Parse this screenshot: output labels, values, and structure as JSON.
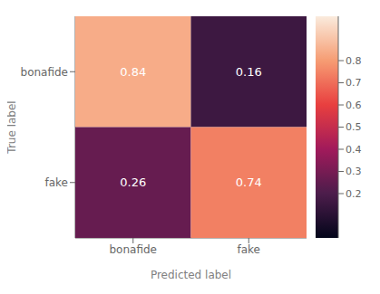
{
  "chart_data": {
    "type": "heatmap",
    "xlabel": "Predicted label",
    "ylabel": "True label",
    "x_categories": [
      "bonafide",
      "fake"
    ],
    "y_categories": [
      "bonafide",
      "fake"
    ],
    "matrix": [
      [
        0.84,
        0.16
      ],
      [
        0.26,
        0.74
      ]
    ],
    "colorbar_range": [
      0.0,
      1.0
    ],
    "colorbar_ticks": [
      0.2,
      0.3,
      0.4,
      0.5,
      0.6,
      0.7,
      0.8
    ],
    "data_labels": true
  }
}
